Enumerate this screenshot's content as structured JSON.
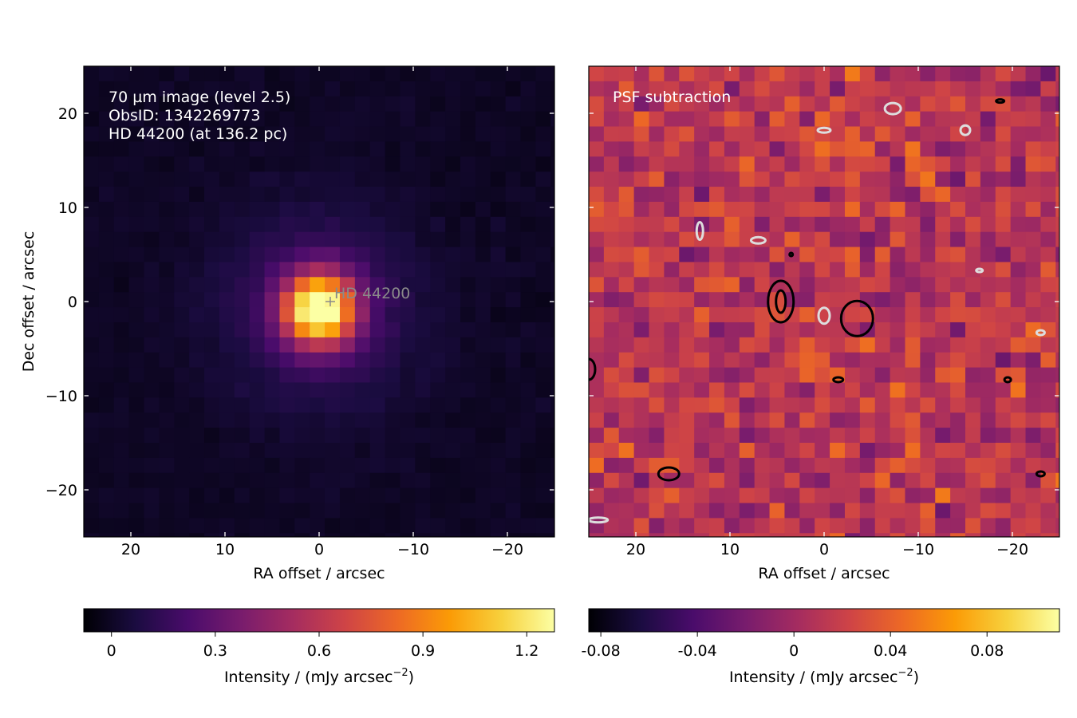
{
  "colormap": [
    "#000004",
    "#1b0c41",
    "#4a0c6b",
    "#781c6d",
    "#a52c60",
    "#cf4446",
    "#ed6925",
    "#fb9b06",
    "#f7d13d",
    "#fcffa4"
  ],
  "chart_data": [
    {
      "type": "heatmap",
      "panel": "left",
      "annotation_lines": [
        "70 µm image (level 2.5)",
        "ObsID: 1342269773",
        "HD 44200 (at 136.2 pc)"
      ],
      "star_marker": {
        "label": "HD  44200",
        "ra": -1.0,
        "dec": 0.0
      },
      "xlabel": "RA offset / arcsec",
      "ylabel": "Dec offset / arcsec",
      "xlim": [
        25,
        -25
      ],
      "ylim": [
        -25,
        25
      ],
      "xticks": [
        20,
        10,
        0,
        -10,
        -20
      ],
      "yticks": [
        20,
        10,
        0,
        -10,
        -20
      ],
      "pixel_size_arcsec": 1.6,
      "peak_ra": 0.0,
      "peak_dec": -0.8,
      "peak_value": 1.28,
      "colorbar": {
        "label": "Intensity / (mJy arcsec",
        "label_exp": "−2",
        "label_end": ")",
        "range": [
          -0.08,
          1.28
        ],
        "ticks": [
          0,
          0.3,
          0.6,
          0.9,
          1.2
        ],
        "tick_labels": [
          "0",
          "0.3",
          "0.6",
          "0.9",
          "1.2"
        ]
      }
    },
    {
      "type": "heatmap",
      "panel": "right",
      "annotation_lines": [
        "PSF subtraction"
      ],
      "xlabel": "RA offset / arcsec",
      "xlim": [
        25,
        -25
      ],
      "ylim": [
        -25,
        25
      ],
      "xticks": [
        20,
        10,
        0,
        -10,
        -20
      ],
      "residual_range": [
        -0.085,
        0.11
      ],
      "contours": "black = positive residual peaks, white = negative residual dips",
      "colorbar": {
        "label": "Intensity / (mJy arcsec",
        "label_exp": "−2",
        "label_end": ")",
        "range": [
          -0.085,
          0.11
        ],
        "ticks": [
          -0.08,
          -0.04,
          0,
          0.04,
          0.08
        ],
        "tick_labels": [
          "-0.08",
          "-0.04",
          "0",
          "0.04",
          "0.08"
        ]
      }
    }
  ]
}
